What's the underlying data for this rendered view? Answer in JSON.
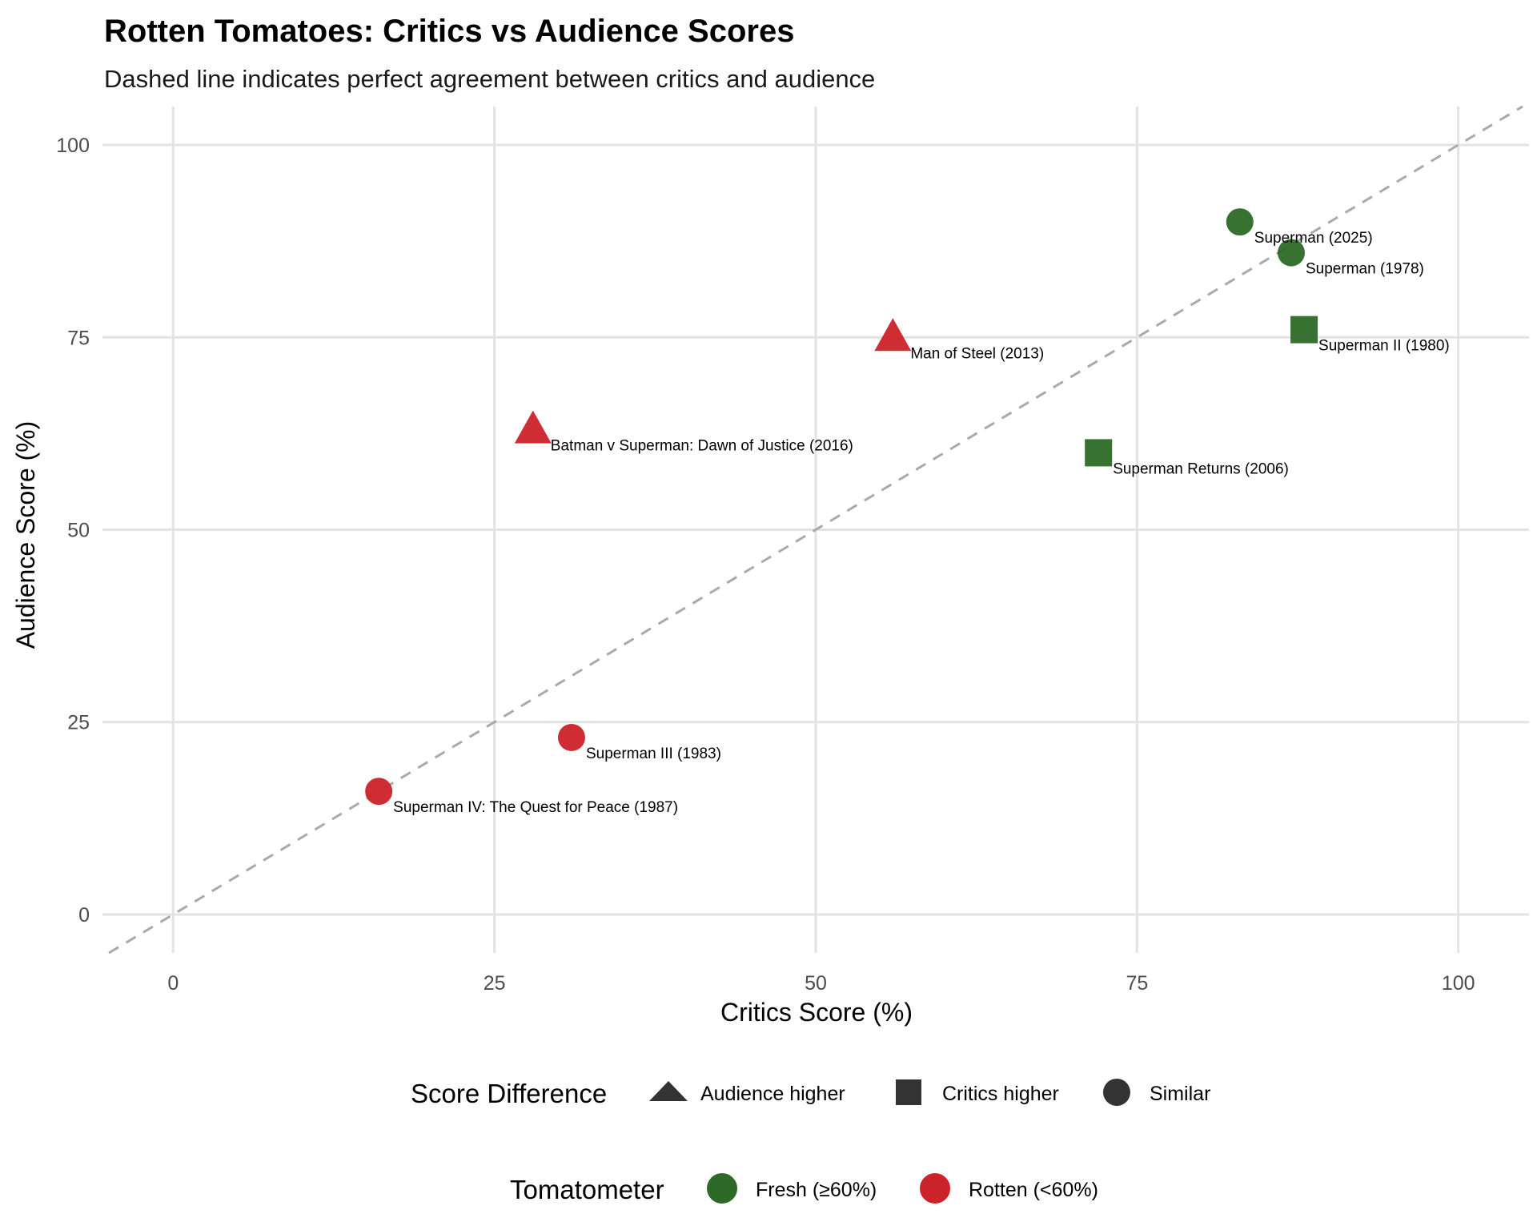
{
  "chart_data": {
    "type": "scatter",
    "title": "Rotten Tomatoes: Critics vs Audience Scores",
    "subtitle": "Dashed line indicates perfect agreement between critics and audience",
    "xlabel": "Critics Score (%)",
    "ylabel": "Audience Score (%)",
    "xlim": [
      -5.5,
      105.5
    ],
    "ylim": [
      -5,
      105
    ],
    "xticks": [
      0,
      25,
      50,
      75,
      100
    ],
    "yticks": [
      0,
      25,
      50,
      75,
      100
    ],
    "grid": true,
    "reference_line": {
      "type": "y=x",
      "style": "dashed",
      "color": "#aaaaaa"
    },
    "points": [
      {
        "label": "Superman (1978)",
        "critics": 87,
        "audience": 86,
        "tomatometer": "Fresh (≥60%)",
        "difference": "Similar"
      },
      {
        "label": "Superman II (1980)",
        "critics": 88,
        "audience": 76,
        "tomatometer": "Fresh (≥60%)",
        "difference": "Critics higher"
      },
      {
        "label": "Superman III (1983)",
        "critics": 31,
        "audience": 23,
        "tomatometer": "Rotten (<60%)",
        "difference": "Similar"
      },
      {
        "label": "Superman IV: The Quest for Peace (1987)",
        "critics": 16,
        "audience": 16,
        "tomatometer": "Rotten (<60%)",
        "difference": "Similar"
      },
      {
        "label": "Superman Returns (2006)",
        "critics": 72,
        "audience": 60,
        "tomatometer": "Fresh (≥60%)",
        "difference": "Critics higher"
      },
      {
        "label": "Man of Steel (2013)",
        "critics": 56,
        "audience": 75,
        "tomatometer": "Rotten (<60%)",
        "difference": "Audience higher"
      },
      {
        "label": "Batman v Superman: Dawn of Justice (2016)",
        "critics": 28,
        "audience": 63,
        "tomatometer": "Rotten (<60%)",
        "difference": "Audience higher"
      },
      {
        "label": "Superman (2025)",
        "critics": 83,
        "audience": 90,
        "tomatometer": "Fresh (≥60%)",
        "difference": "Similar"
      }
    ],
    "legend_shape": {
      "title": "Score Difference",
      "entries": [
        {
          "label": "Audience higher",
          "shape": "triangle"
        },
        {
          "label": "Critics higher",
          "shape": "square"
        },
        {
          "label": "Similar",
          "shape": "circle"
        }
      ]
    },
    "legend_color": {
      "title": "Tomatometer",
      "entries": [
        {
          "label": "Fresh (≥60%)",
          "color": "#2d6a27"
        },
        {
          "label": "Rotten (<60%)",
          "color": "#cc2229"
        }
      ]
    }
  }
}
